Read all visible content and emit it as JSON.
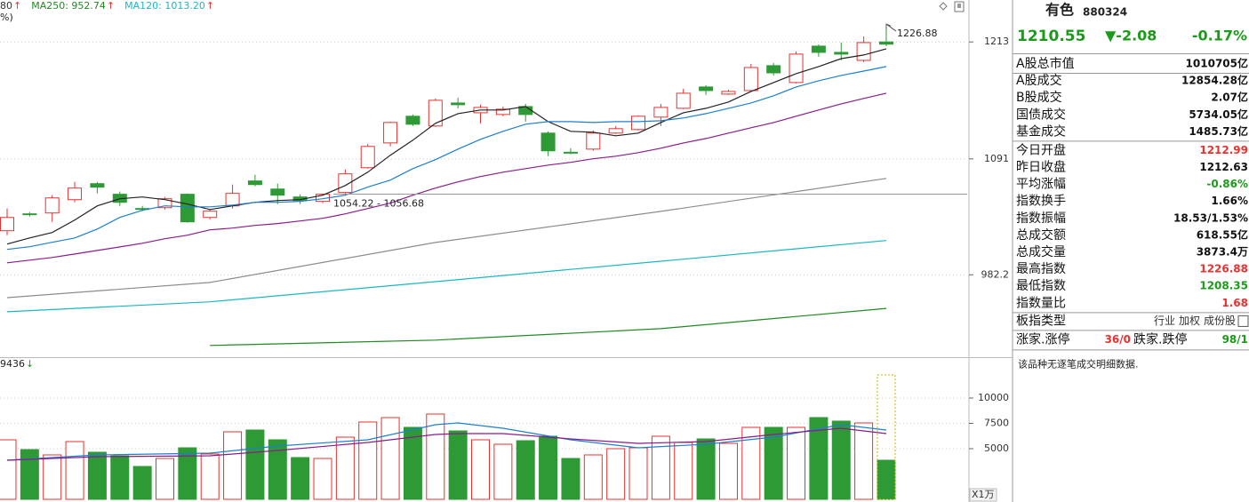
{
  "chart_data": [
    {
      "type": "candlestick",
      "yscale": "log",
      "ylim": [
        913,
        1260
      ],
      "yticks": [
        1213,
        1091,
        982.2
      ],
      "xlim": [
        -0.315,
        42.59
      ],
      "grid": true,
      "up_color": "#e8322f",
      "down_color": "#2e9a36",
      "legend": [
        {
          "text": "80",
          "arrow": "↑",
          "color": "#333333"
        },
        {
          "text": "MA250: 952.74",
          "arrow": "↑",
          "color": "#1f8a1f"
        },
        {
          "text": "MA120: 1013.20",
          "arrow": "↑",
          "color": "#19b8c4"
        }
      ],
      "legend_sub": "%)",
      "candles": {
        "open": [
          1022.2,
          1038.0,
          1038.8,
          1051.4,
          1066.8,
          1056.6,
          1043.0,
          1043.8,
          1056.6,
          1034.6,
          1045.5,
          1069.4,
          1061.6,
          1054.0,
          1049.8,
          1058.3,
          1082.3,
          1106.9,
          1134.0,
          1124.0,
          1147.7,
          1137.6,
          1135.8,
          1144.0,
          1116.8,
          1097.6,
          1100.7,
          1116.8,
          1120.4,
          1133.1,
          1142.2,
          1164.5,
          1157.0,
          1160.7,
          1187.2,
          1169.2,
          1208.4,
          1201.6,
          1192.9,
          1212.99
        ],
        "high": [
          1043.0,
          1039.6,
          1055.7,
          1068.5,
          1068.5,
          1059.1,
          1045.5,
          1054.0,
          1057.4,
          1042.1,
          1065.9,
          1075.4,
          1066.8,
          1056.6,
          1057.4,
          1080.6,
          1106.0,
          1128.5,
          1135.8,
          1152.4,
          1153.3,
          1145.9,
          1144.0,
          1146.8,
          1118.6,
          1101.6,
          1119.5,
          1124.0,
          1134.9,
          1146.8,
          1162.6,
          1166.3,
          1161.7,
          1189.1,
          1190.1,
          1202.6,
          1210.3,
          1212.3,
          1219.1,
          1226.88
        ],
        "low": [
          1018.1,
          1035.5,
          1030.5,
          1048.9,
          1057.4,
          1045.5,
          1040.4,
          1042.1,
          1029.7,
          1032.9,
          1043.0,
          1064.2,
          1047.2,
          1047.2,
          1048.1,
          1055.7,
          1081.4,
          1103.4,
          1124.0,
          1123.1,
          1142.2,
          1126.7,
          1134.0,
          1128.5,
          1093.7,
          1095.5,
          1099.0,
          1115.9,
          1119.5,
          1124.0,
          1141.3,
          1156.1,
          1156.1,
          1159.8,
          1176.7,
          1168.2,
          1196.8,
          1192.9,
          1191.0,
          1208.35
        ],
        "close": [
          1034.6,
          1037.2,
          1053.1,
          1062.5,
          1063.4,
          1048.9,
          1042.6,
          1052.3,
          1030.5,
          1040.5,
          1057.4,
          1065.9,
          1055.7,
          1050.6,
          1056.6,
          1076.3,
          1103.4,
          1127.6,
          1125.8,
          1150.5,
          1145.9,
          1143.1,
          1141.3,
          1135.8,
          1099.0,
          1096.9,
          1116.8,
          1121.3,
          1134.0,
          1143.1,
          1157.9,
          1160.7,
          1159.8,
          1185.2,
          1179.5,
          1199.7,
          1201.6,
          1199.7,
          1212.3,
          1210.55
        ]
      },
      "series": [
        {
          "color": "#222222",
          "values": [
            1009.9,
            1015.6,
            1020.6,
            1032.2,
            1045.5,
            1052.3,
            1054.0,
            1051.4,
            1047.2,
            1042.1,
            1045.5,
            1048.9,
            1050.6,
            1051.4,
            1055.7,
            1065.0,
            1077.9,
            1094.6,
            1109.6,
            1126.7,
            1136.7,
            1140.4,
            1140.4,
            1144.0,
            1128.5,
            1118.6,
            1117.7,
            1114.1,
            1116.8,
            1127.6,
            1137.6,
            1142.2,
            1148.7,
            1159.8,
            1169.2,
            1178.6,
            1186.2,
            1194.8,
            1198.7,
            1205.5
          ]
        },
        {
          "color": "#1e7fd0",
          "values": [
            1005.1,
            1007.5,
            1011.6,
            1015.6,
            1023.8,
            1034.6,
            1041.3,
            1045.5,
            1044.6,
            1044.6,
            1046.3,
            1048.9,
            1048.9,
            1049.8,
            1052.3,
            1055.7,
            1063.4,
            1070.2,
            1081.4,
            1090.2,
            1100.7,
            1110.5,
            1118.6,
            1125.8,
            1128.5,
            1128.5,
            1127.6,
            1128.5,
            1128.5,
            1129.4,
            1132.2,
            1136.7,
            1142.2,
            1147.7,
            1155.2,
            1164.5,
            1171.1,
            1176.7,
            1181.4,
            1186.2
          ]
        },
        {
          "color": "#8a1c8a",
          "values": [
            992.9,
            995.3,
            997.7,
            1000.9,
            1004.1,
            1007.3,
            1010.7,
            1014.8,
            1018.1,
            1023.0,
            1024.7,
            1027.2,
            1028.9,
            1031.3,
            1033.8,
            1038.0,
            1043.0,
            1048.1,
            1055.7,
            1062.5,
            1068.5,
            1073.7,
            1077.9,
            1081.4,
            1084.9,
            1087.6,
            1091.1,
            1093.7,
            1097.2,
            1101.6,
            1106.9,
            1111.3,
            1116.8,
            1122.2,
            1127.6,
            1134.0,
            1140.4,
            1146.8,
            1152.4,
            1157.9
          ]
        },
        {
          "color": "#8c8c8c",
          "x": [
            0,
            9,
            19,
            29,
            39
          ],
          "values": [
            962.1,
            975.4,
            1011.4,
            1040.3,
            1071.9
          ]
        },
        {
          "color": "#19b8c4",
          "x": [
            0,
            9,
            19,
            29,
            39
          ],
          "values": [
            949.8,
            958.4,
            976.1,
            994.4,
            1013.2
          ]
        },
        {
          "color": "#1f8a1f",
          "x": [
            9,
            19,
            29,
            39
          ],
          "values": [
            921.3,
            925.7,
            935.4,
            952.74
          ]
        }
      ],
      "high_label": {
        "x": 39,
        "value": 1226.88
      },
      "ref_line": {
        "label": "1054.22 - 1056.68",
        "value": 1056.68,
        "x": 14
      }
    },
    {
      "type": "bar",
      "ylim": [
        0,
        13770
      ],
      "yticks": [
        10000,
        7500,
        5000
      ],
      "unit_label": "X1万",
      "top_label": "9436",
      "top_arrow": "↓",
      "values": [
        5877,
        4912,
        4386,
        5702,
        4649,
        4298,
        3246,
        4035,
        5088,
        4474,
        6667,
        6842,
        5877,
        4123,
        4035,
        6140,
        7632,
        8070,
        7105,
        8421,
        6754,
        5877,
        5439,
        5789,
        6228,
        4035,
        4386,
        5000,
        5088,
        6228,
        5614,
        5965,
        5526,
        7105,
        7105,
        7105,
        8070,
        7719,
        7544,
        3860
      ],
      "forecast": 12280,
      "series": [
        {
          "color": "#1e7fd0",
          "x": [
            0,
            4,
            9,
            12,
            16,
            19,
            20,
            22,
            25,
            28,
            31,
            34,
            37,
            39
          ],
          "values": [
            3860,
            4386,
            4561,
            5263,
            5877,
            7368,
            7544,
            7018,
            5877,
            5088,
            5439,
            6140,
            7368,
            6842
          ]
        },
        {
          "color": "#8a1c8a",
          "x": [
            0,
            4,
            9,
            12,
            16,
            19,
            20,
            22,
            25,
            28,
            31,
            34,
            37,
            39
          ],
          "values": [
            3860,
            4211,
            4298,
            4825,
            5614,
            6404,
            6491,
            6491,
            5965,
            5526,
            5702,
            6404,
            7018,
            6491
          ]
        }
      ]
    }
  ],
  "info_panel": {
    "name": "有色",
    "code": "880324",
    "price": "1210.55",
    "change": "▼-2.08",
    "pct": "-0.17%",
    "rows": [
      {
        "label": "A股总市值",
        "value": "1010705亿"
      },
      {
        "label": "A股成交",
        "value": "12854.28亿"
      },
      {
        "label": "B股成交",
        "value": "2.07亿"
      },
      {
        "label": "国债成交",
        "value": "5734.05亿"
      },
      {
        "label": "基金成交",
        "value": "1485.73亿"
      },
      {
        "label": "今日开盘",
        "value": "1212.99",
        "color": "#e8322f"
      },
      {
        "label": "昨日收盘",
        "value": "1212.63"
      },
      {
        "label": "平均涨幅",
        "value": "-0.86%",
        "color": "#1a9b1a"
      },
      {
        "label": "指数换手",
        "value": "1.66%"
      },
      {
        "label": "指数振幅",
        "value": "18.53/1.53%"
      },
      {
        "label": "总成交额",
        "value": "618.55亿"
      },
      {
        "label": "总成交量",
        "value": "3873.4万"
      },
      {
        "label": "最高指数",
        "value": "1226.88",
        "color": "#e8322f"
      },
      {
        "label": "最低指数",
        "value": "1208.35",
        "color": "#1a9b1a"
      },
      {
        "label": "指数量比",
        "value": "1.68",
        "color": "#e8322f"
      }
    ],
    "type_row": {
      "label": "板指类型",
      "links": [
        "行业",
        "加权",
        "成份股"
      ]
    },
    "limit_row": {
      "label": "涨家.涨停",
      "value": "36/0",
      "label2": "跌家.跌停",
      "value2": "98/1"
    },
    "note": "该品种无逐笔成交明细数据."
  }
}
